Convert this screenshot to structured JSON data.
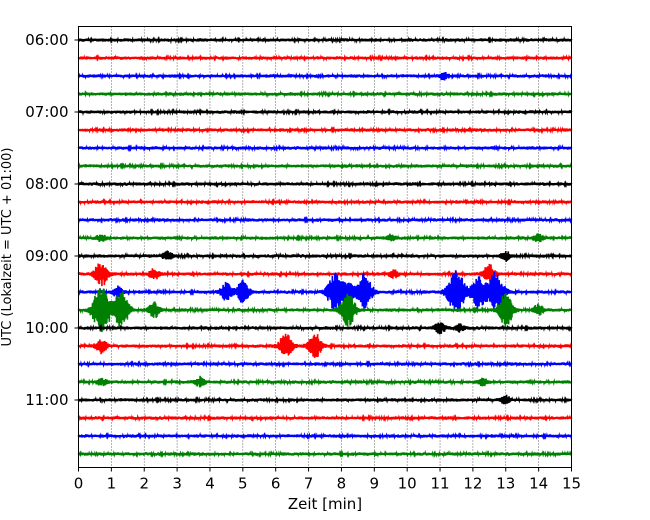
{
  "chart_data": {
    "type": "line",
    "title": "",
    "xlabel": "Zeit  [min]",
    "ylabel": "UTC (Lokalzeit = UTC + 01:00)",
    "xlim": [
      0,
      15
    ],
    "x_ticks": [
      "0",
      "1",
      "2",
      "3",
      "4",
      "5",
      "6",
      "7",
      "8",
      "9",
      "10",
      "11",
      "12",
      "13",
      "14",
      "15"
    ],
    "y_ticks": [
      "06:00",
      "07:00",
      "08:00",
      "09:00",
      "10:00",
      "11:00"
    ],
    "grid": "vertical dotted",
    "trace_interval_min": 15,
    "trace_colors": [
      "#000000",
      "#ff0000",
      "#0000ff",
      "#008000"
    ],
    "series": [
      {
        "start": "06:00",
        "events": []
      },
      {
        "start": "06:15",
        "events": []
      },
      {
        "start": "06:30",
        "events": [
          {
            "t": 11.1,
            "amp": 0.2
          }
        ]
      },
      {
        "start": "06:45",
        "events": []
      },
      {
        "start": "07:00",
        "events": []
      },
      {
        "start": "07:15",
        "events": []
      },
      {
        "start": "07:30",
        "events": []
      },
      {
        "start": "07:45",
        "events": []
      },
      {
        "start": "08:00",
        "events": []
      },
      {
        "start": "08:15",
        "events": []
      },
      {
        "start": "08:30",
        "events": []
      },
      {
        "start": "08:45",
        "events": [
          {
            "t": 0.7,
            "amp": 0.2
          },
          {
            "t": 9.5,
            "amp": 0.15
          },
          {
            "t": 14.0,
            "amp": 0.2
          }
        ]
      },
      {
        "start": "09:00",
        "events": [
          {
            "t": 2.7,
            "amp": 0.25
          },
          {
            "t": 13.0,
            "amp": 0.25
          }
        ]
      },
      {
        "start": "09:15",
        "events": [
          {
            "t": 0.7,
            "amp": 0.7
          },
          {
            "t": 2.3,
            "amp": 0.3
          },
          {
            "t": 9.6,
            "amp": 0.2
          },
          {
            "t": 12.5,
            "amp": 0.5
          }
        ]
      },
      {
        "start": "09:30",
        "events": [
          {
            "t": 1.2,
            "amp": 0.3
          },
          {
            "t": 4.5,
            "amp": 0.5
          },
          {
            "t": 5.0,
            "amp": 0.6
          },
          {
            "t": 7.8,
            "amp": 1.0
          },
          {
            "t": 8.2,
            "amp": 0.5
          },
          {
            "t": 8.7,
            "amp": 1.0
          },
          {
            "t": 11.5,
            "amp": 1.3
          },
          {
            "t": 12.2,
            "amp": 1.0
          },
          {
            "t": 12.7,
            "amp": 1.1
          }
        ]
      },
      {
        "start": "09:45",
        "events": [
          {
            "t": 0.7,
            "amp": 1.3
          },
          {
            "t": 1.3,
            "amp": 1.0
          },
          {
            "t": 2.3,
            "amp": 0.4
          },
          {
            "t": 8.2,
            "amp": 0.9
          },
          {
            "t": 13.0,
            "amp": 0.9
          },
          {
            "t": 14.0,
            "amp": 0.3
          }
        ]
      },
      {
        "start": "10:00",
        "events": [
          {
            "t": 11.0,
            "amp": 0.3
          },
          {
            "t": 11.6,
            "amp": 0.2
          }
        ]
      },
      {
        "start": "10:15",
        "events": [
          {
            "t": 0.7,
            "amp": 0.4
          },
          {
            "t": 6.3,
            "amp": 0.7
          },
          {
            "t": 7.2,
            "amp": 0.7
          }
        ]
      },
      {
        "start": "10:30",
        "events": []
      },
      {
        "start": "10:45",
        "events": [
          {
            "t": 0.7,
            "amp": 0.2
          },
          {
            "t": 3.7,
            "amp": 0.25
          },
          {
            "t": 12.3,
            "amp": 0.2
          }
        ]
      },
      {
        "start": "11:00",
        "events": [
          {
            "t": 13.0,
            "amp": 0.2
          }
        ]
      },
      {
        "start": "11:15",
        "events": []
      },
      {
        "start": "11:30",
        "events": []
      },
      {
        "start": "11:45",
        "events": []
      }
    ]
  }
}
